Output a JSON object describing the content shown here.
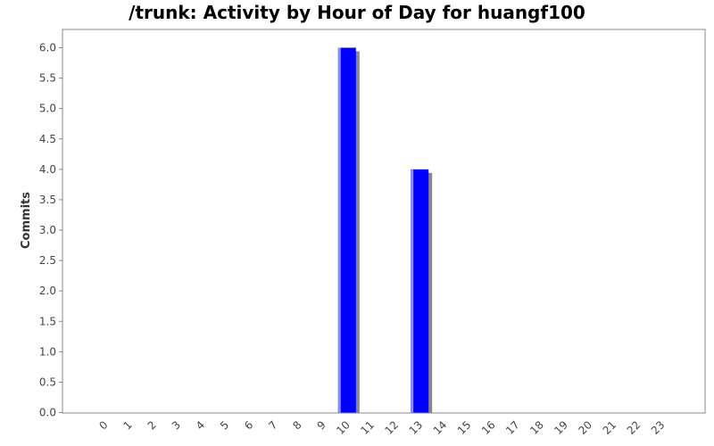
{
  "title": "/trunk: Activity by Hour of Day for huangf100",
  "chart_data": {
    "type": "bar",
    "title": "/trunk: Activity by Hour of Day for huangf100",
    "xlabel": "",
    "ylabel": "Commits",
    "categories": [
      "0",
      "1",
      "2",
      "3",
      "4",
      "5",
      "6",
      "7",
      "8",
      "9",
      "10",
      "11",
      "12",
      "13",
      "14",
      "15",
      "16",
      "17",
      "18",
      "19",
      "20",
      "21",
      "22",
      "23"
    ],
    "values": [
      0,
      0,
      0,
      0,
      0,
      0,
      0,
      0,
      0,
      0,
      6,
      0,
      0,
      4,
      0,
      0,
      0,
      0,
      0,
      0,
      0,
      0,
      0,
      0
    ],
    "ylim": [
      0,
      6.3
    ],
    "yticks": [
      "0.0",
      "0.5",
      "1.0",
      "1.5",
      "2.0",
      "2.5",
      "3.0",
      "3.5",
      "4.0",
      "4.5",
      "5.0",
      "5.5",
      "6.0"
    ],
    "grid": false,
    "bar_color": "#0000ff",
    "shadow_color": "#888888"
  }
}
